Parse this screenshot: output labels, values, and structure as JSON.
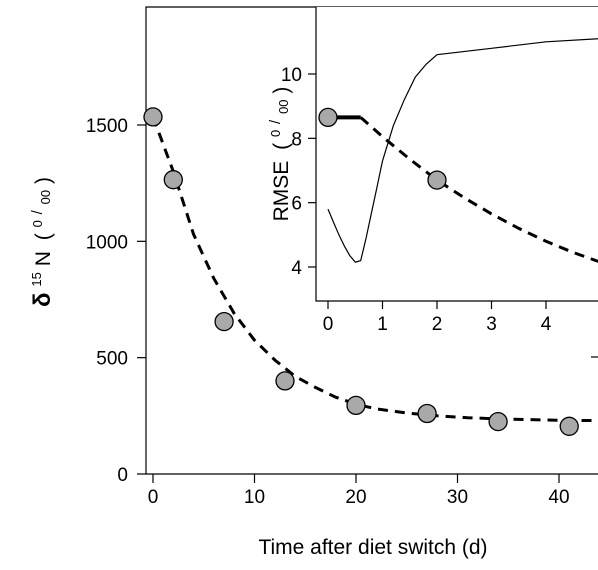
{
  "chart_data": [
    {
      "type": "scatter",
      "xlabel": "Time after diet switch  (d)",
      "ylabel_parts": {
        "delta": "δ",
        "sup": "15",
        "element": "N",
        "unit_open": "(",
        "unit_num": "0",
        "unit_den": "00",
        "unit_close": ")"
      },
      "xlim": [
        -1,
        45
      ],
      "ylim": [
        0,
        2000
      ],
      "xticks": [
        0,
        10,
        20,
        30,
        40
      ],
      "yticks": [
        0,
        500,
        1000,
        1500
      ],
      "series": [
        {
          "kind": "points",
          "x": [
            0,
            2,
            7,
            13,
            20,
            27,
            34,
            41
          ],
          "y": [
            1535,
            1265,
            655,
            400,
            295,
            260,
            225,
            205
          ]
        },
        {
          "kind": "dashed-line",
          "x": [
            0,
            2,
            4,
            6,
            8,
            10,
            12,
            14,
            16,
            18,
            20,
            22,
            25,
            28,
            31,
            34,
            37,
            40,
            45
          ],
          "y": [
            1535,
            1300,
            1030,
            840,
            690,
            575,
            490,
            420,
            372,
            330,
            300,
            280,
            262,
            250,
            242,
            237,
            234,
            231,
            229
          ]
        }
      ]
    },
    {
      "type": "line",
      "ylabel_parts": {
        "text": "RMSE",
        "unit_open": "(",
        "unit_num": "0",
        "unit_den": "00",
        "unit_close": ")"
      },
      "xlim": [
        -0.25,
        5.8
      ],
      "ylim": [
        3,
        12
      ],
      "xticks": [
        0,
        1,
        2,
        3,
        4
      ],
      "yticks": [
        4,
        6,
        8,
        10
      ],
      "series": [
        {
          "kind": "solid-line",
          "x": [
            0,
            0.1,
            0.2,
            0.3,
            0.4,
            0.5,
            0.6,
            0.7,
            0.8,
            0.9,
            1.0,
            1.2,
            1.4,
            1.6,
            1.8,
            2.0,
            3.0,
            4.0,
            5.0,
            5.8
          ],
          "y": [
            5.8,
            5.4,
            5.0,
            4.65,
            4.35,
            4.15,
            4.2,
            4.9,
            5.7,
            6.5,
            7.3,
            8.4,
            9.2,
            9.9,
            10.3,
            10.6,
            10.8,
            11.0,
            11.1,
            11.3
          ]
        },
        {
          "kind": "dashed-line",
          "x": [
            0.6,
            1.0,
            1.5,
            2.0,
            2.5,
            3.0,
            3.5,
            4.0,
            4.5,
            5.0,
            5.8
          ],
          "y": [
            8.65,
            8.05,
            7.35,
            6.7,
            6.15,
            5.65,
            5.2,
            4.8,
            4.45,
            4.15,
            3.75
          ]
        },
        {
          "kind": "thick-line",
          "x": [
            0,
            0.6
          ],
          "y": [
            8.65,
            8.65
          ]
        },
        {
          "kind": "points",
          "x": [
            0,
            2
          ],
          "y": [
            8.65,
            6.7
          ]
        }
      ]
    }
  ]
}
